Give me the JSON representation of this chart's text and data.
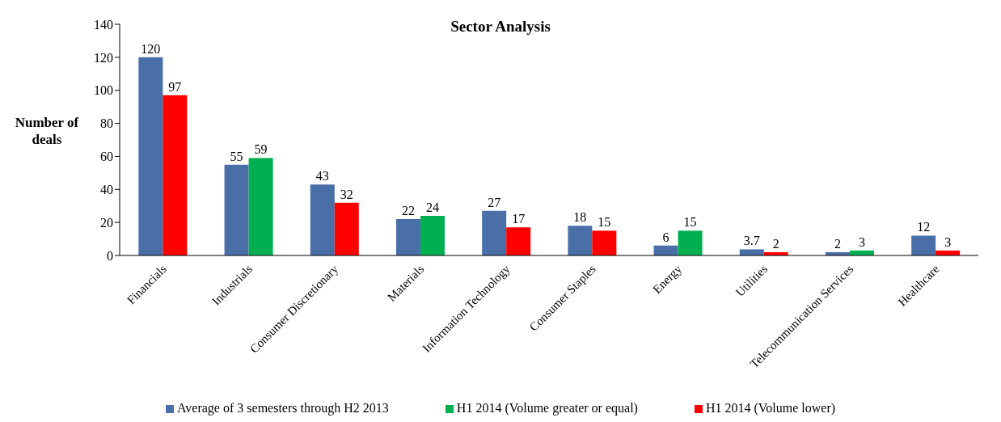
{
  "chart_data": {
    "type": "bar",
    "title": "Sector Analysis",
    "ylabel": "Number of deals",
    "categories": [
      "Financials",
      "Industrials",
      "Consumer Discretionary",
      "Materials",
      "Information Technology",
      "Consumer Staples",
      "Energy",
      "Utilities",
      "Telecommunication Services",
      "Healthcare"
    ],
    "series": [
      {
        "name": "Average of 3 semesters through H2 2013",
        "color": "#4a6fa8",
        "values": [
          120,
          55,
          43,
          22,
          27,
          18,
          6,
          3.7,
          2,
          12
        ]
      },
      {
        "name": "H1 2014 (Volume greater or equal)",
        "color": "#00b050",
        "values": [
          null,
          59,
          null,
          24,
          null,
          null,
          15,
          null,
          3,
          null
        ]
      },
      {
        "name": "H1 2014 (Volume lower)",
        "color": "#ff0000",
        "values": [
          97,
          null,
          32,
          null,
          17,
          15,
          null,
          2,
          null,
          3
        ]
      }
    ],
    "ylim": [
      0,
      140
    ],
    "yticks": [
      0,
      20,
      40,
      60,
      80,
      100,
      120,
      140
    ],
    "grid": false,
    "legend": "bottom",
    "data_labels": true
  }
}
